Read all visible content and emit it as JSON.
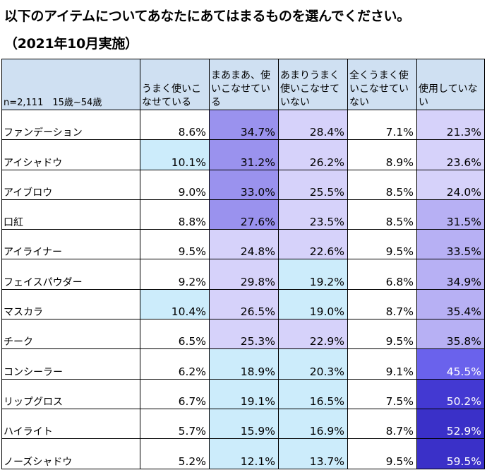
{
  "title": "以下のアイテムについてあなたにあてはまるものを選んでください。",
  "subtitle": "（2021年10月実施）",
  "chart_data": {
    "type": "table",
    "corner_label": "n=2,111　15歳~54歳",
    "columns": [
      "うまく使いこなせている",
      "まあまあ、使いこなせている",
      "あまりうまく使いこなせていない",
      "全くうまく使いこなせていない",
      "使用していない"
    ],
    "rows": [
      {
        "label": "ファンデーション",
        "values": [
          "8.6%",
          "34.7%",
          "28.4%",
          "7.1%",
          "21.3%"
        ]
      },
      {
        "label": "アイシャドウ",
        "values": [
          "10.1%",
          "31.2%",
          "26.2%",
          "8.9%",
          "23.6%"
        ]
      },
      {
        "label": "アイブロウ",
        "values": [
          "9.0%",
          "33.0%",
          "25.5%",
          "8.5%",
          "24.0%"
        ]
      },
      {
        "label": "口紅",
        "values": [
          "8.8%",
          "27.6%",
          "23.5%",
          "8.5%",
          "31.5%"
        ]
      },
      {
        "label": "アイライナー",
        "values": [
          "9.5%",
          "24.8%",
          "22.6%",
          "9.5%",
          "33.5%"
        ]
      },
      {
        "label": "フェイスパウダー",
        "values": [
          "9.2%",
          "29.8%",
          "19.2%",
          "6.8%",
          "34.9%"
        ]
      },
      {
        "label": "マスカラ",
        "values": [
          "10.4%",
          "26.5%",
          "19.0%",
          "8.7%",
          "35.4%"
        ]
      },
      {
        "label": "チーク",
        "values": [
          "6.5%",
          "25.3%",
          "22.9%",
          "9.5%",
          "35.8%"
        ]
      },
      {
        "label": "コンシーラー",
        "values": [
          "6.2%",
          "18.9%",
          "20.3%",
          "9.1%",
          "45.5%"
        ]
      },
      {
        "label": "リップグロス",
        "values": [
          "6.7%",
          "19.1%",
          "16.5%",
          "7.5%",
          "50.2%"
        ]
      },
      {
        "label": "ハイライト",
        "values": [
          "5.7%",
          "15.9%",
          "16.9%",
          "8.7%",
          "52.9%"
        ]
      },
      {
        "label": "ノーズシャドウ",
        "values": [
          "5.2%",
          "12.1%",
          "13.7%",
          "9.5%",
          "59.5%"
        ]
      }
    ],
    "header_color": "#cfe0f2",
    "colors": {
      "light_blue": "#ccecfb",
      "lavender": "#d6d2fa",
      "mid_purple": "#b7b0f4",
      "purple": "#9a92ee",
      "violet": "#6a62ec",
      "deep_blue": "#4339d2",
      "dark_blue": "#3a30c8"
    }
  }
}
